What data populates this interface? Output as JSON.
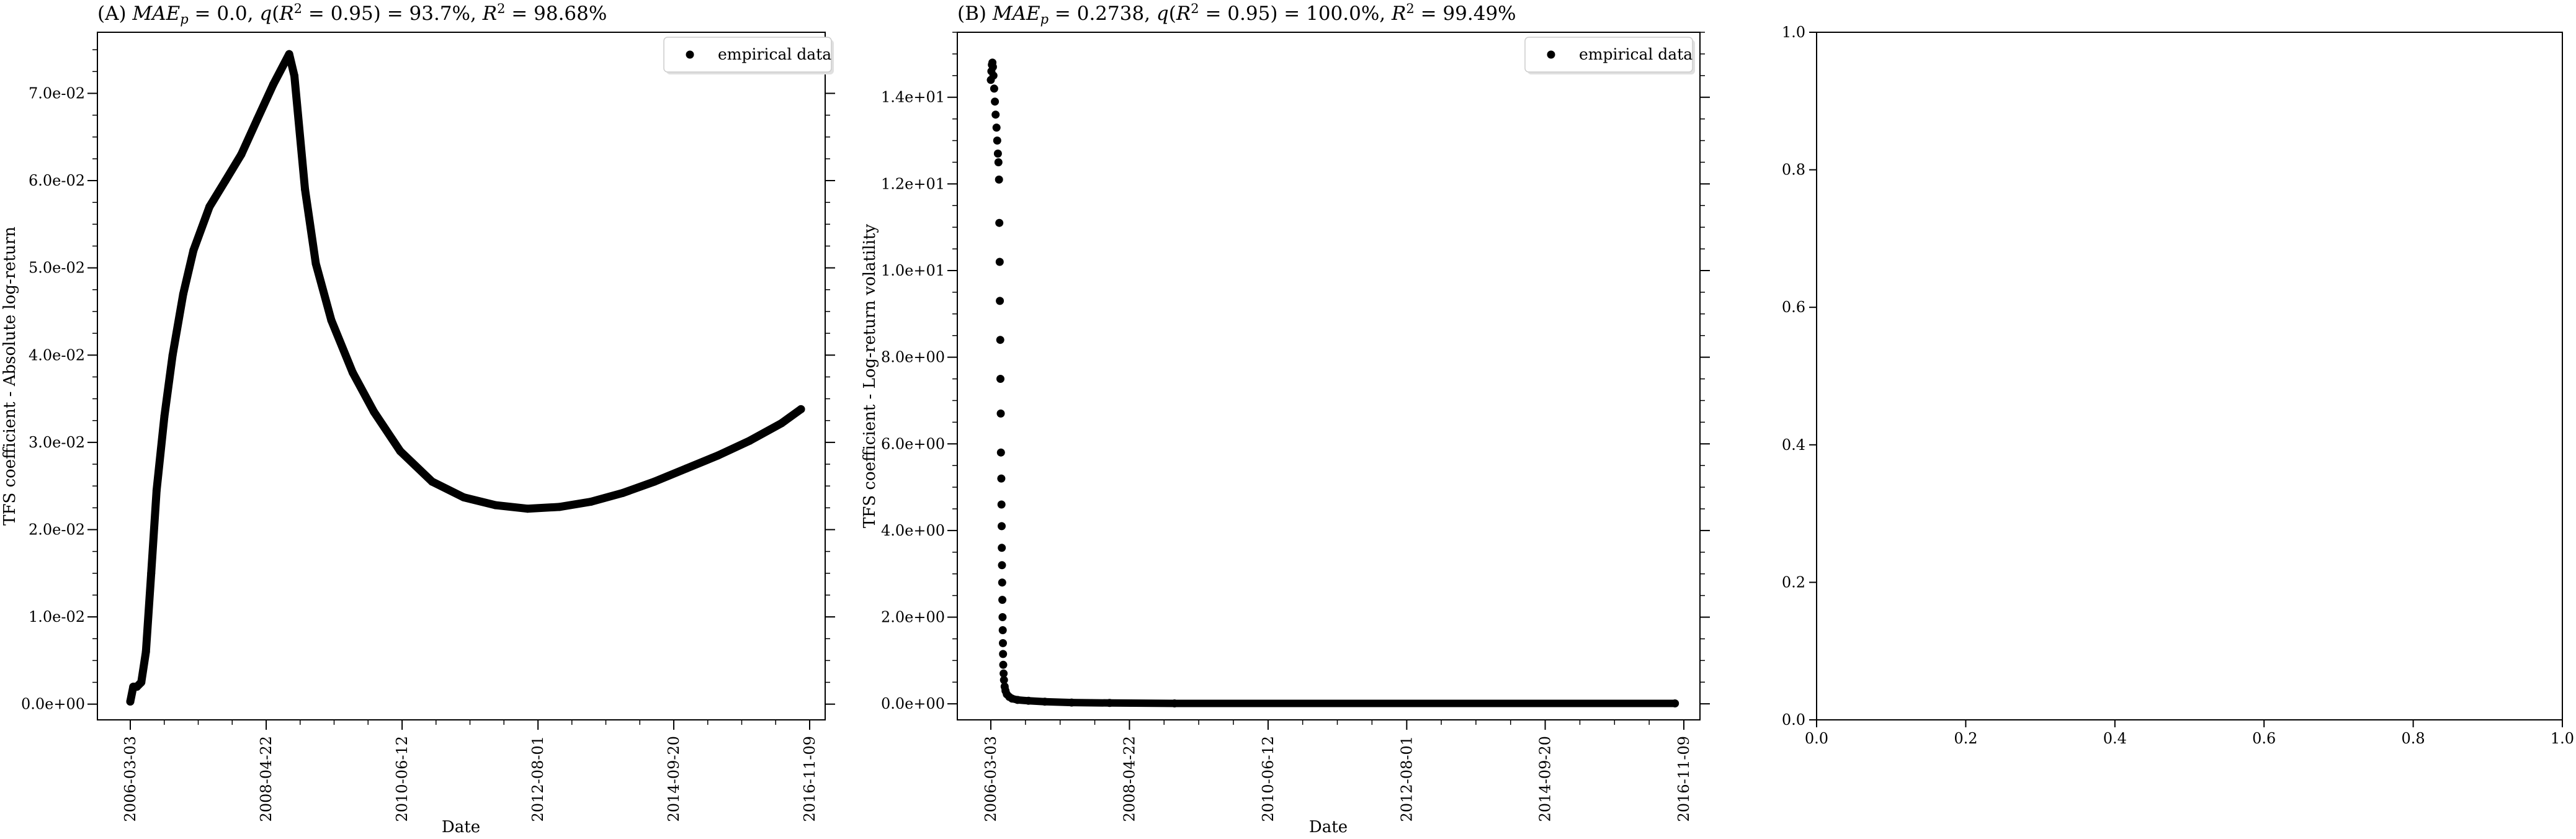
{
  "chart_data": [
    {
      "type": "scatter",
      "title": "(A) MAE_p = 0.0, q(R² = 0.95) = 93.7%, R² = 98.68%",
      "xlabel": "Date",
      "ylabel": "TFS coefficient - Absolute log-return",
      "x_ticks": [
        "2006-03-03",
        "2008-04-22",
        "2010-06-12",
        "2012-08-01",
        "2014-09-20",
        "2016-11-09"
      ],
      "y_ticks": [
        "0.0e+00",
        "1.0e-02",
        "2.0e-02",
        "3.0e-02",
        "4.0e-02",
        "5.0e-02",
        "6.0e-02",
        "7.0e-02"
      ],
      "ylim": [
        -0.0018,
        0.077
      ],
      "legend": "top-right",
      "series": [
        {
          "name": "empirical data",
          "points": [
            [
              "2006-03-03",
              0.0003
            ],
            [
              "2006-03-20",
              0.002
            ],
            [
              "2006-04-10",
              0.002
            ],
            [
              "2006-05-05",
              0.0025
            ],
            [
              "2006-06-01",
              0.006
            ],
            [
              "2006-07-01",
              0.015
            ],
            [
              "2006-08-01",
              0.0245
            ],
            [
              "2006-09-15",
              0.033
            ],
            [
              "2006-11-01",
              0.04
            ],
            [
              "2007-01-01",
              0.047
            ],
            [
              "2007-03-01",
              0.052
            ],
            [
              "2007-06-01",
              0.057
            ],
            [
              "2007-09-01",
              0.06
            ],
            [
              "2007-12-01",
              0.063
            ],
            [
              "2008-03-01",
              0.067
            ],
            [
              "2008-06-01",
              0.071
            ],
            [
              "2008-09-01",
              0.0745
            ],
            [
              "2008-10-01",
              0.072
            ],
            [
              "2008-12-01",
              0.059
            ],
            [
              "2009-02-01",
              0.0505
            ],
            [
              "2009-05-01",
              0.044
            ],
            [
              "2009-09-01",
              0.038
            ],
            [
              "2010-01-01",
              0.0335
            ],
            [
              "2010-06-01",
              0.029
            ],
            [
              "2010-12-01",
              0.0255
            ],
            [
              "2011-06-01",
              0.0237
            ],
            [
              "2011-12-01",
              0.0228
            ],
            [
              "2012-06-01",
              0.0224
            ],
            [
              "2012-12-01",
              0.0226
            ],
            [
              "2013-06-01",
              0.0232
            ],
            [
              "2013-12-01",
              0.0242
            ],
            [
              "2014-06-01",
              0.0255
            ],
            [
              "2014-12-01",
              0.027
            ],
            [
              "2015-06-01",
              0.0285
            ],
            [
              "2015-12-01",
              0.0302
            ],
            [
              "2016-06-01",
              0.0322
            ],
            [
              "2016-09-20",
              0.0338
            ]
          ]
        }
      ]
    },
    {
      "type": "scatter",
      "title": "(B) MAE_p = 0.2738, q(R² = 0.95) = 100.0%, R² = 99.49%",
      "xlabel": "Date",
      "ylabel": "TFS coefficient - Log-return volatility",
      "x_ticks": [
        "2006-03-03",
        "2008-04-22",
        "2010-06-12",
        "2012-08-01",
        "2014-09-20",
        "2016-11-09"
      ],
      "y_ticks": [
        "0.0e+00",
        "2.0e+00",
        "4.0e+00",
        "6.0e+00",
        "8.0e+00",
        "1.0e+01",
        "1.2e+01",
        "1.4e+01"
      ],
      "ylim": [
        -0.37,
        15.5
      ],
      "legend": "top-right",
      "series": [
        {
          "name": "empirical data",
          "points": [
            [
              "2006-03-03",
              14.4
            ],
            [
              "2006-03-06",
              14.6
            ],
            [
              "2006-03-09",
              14.75
            ],
            [
              "2006-03-12",
              14.8
            ],
            [
              "2006-03-15",
              14.7
            ],
            [
              "2006-03-18",
              14.5
            ],
            [
              "2006-03-22",
              14.2
            ],
            [
              "2006-03-26",
              13.9
            ],
            [
              "2006-03-30",
              13.6
            ],
            [
              "2006-04-04",
              13.3
            ],
            [
              "2006-04-08",
              13.0
            ],
            [
              "2006-04-12",
              12.7
            ],
            [
              "2006-04-15",
              12.5
            ],
            [
              "2006-04-18",
              12.1
            ],
            [
              "2006-04-20",
              11.1
            ],
            [
              "2006-04-22",
              10.2
            ],
            [
              "2006-04-23",
              9.3
            ],
            [
              "2006-04-25",
              8.4
            ],
            [
              "2006-04-26",
              7.5
            ],
            [
              "2006-04-28",
              6.7
            ],
            [
              "2006-04-29",
              5.8
            ],
            [
              "2006-05-01",
              5.2
            ],
            [
              "2006-05-02",
              4.6
            ],
            [
              "2006-05-03",
              4.1
            ],
            [
              "2006-05-04",
              3.6
            ],
            [
              "2006-05-05",
              3.2
            ],
            [
              "2006-05-06",
              2.8
            ],
            [
              "2006-05-07",
              2.4
            ],
            [
              "2006-05-08",
              2.0
            ],
            [
              "2006-05-09",
              1.7
            ],
            [
              "2006-05-10",
              1.4
            ],
            [
              "2006-05-11",
              1.15
            ],
            [
              "2006-05-12",
              0.9
            ],
            [
              "2006-05-14",
              0.7
            ],
            [
              "2006-05-16",
              0.55
            ],
            [
              "2006-05-20",
              0.4
            ],
            [
              "2006-05-25",
              0.3
            ],
            [
              "2006-06-01",
              0.22
            ],
            [
              "2006-06-15",
              0.16
            ],
            [
              "2006-07-01",
              0.12
            ],
            [
              "2006-08-01",
              0.09
            ],
            [
              "2006-10-01",
              0.07
            ],
            [
              "2007-01-01",
              0.05
            ],
            [
              "2007-06-01",
              0.03
            ],
            [
              "2008-01-01",
              0.02
            ],
            [
              "2009-01-01",
              0.01
            ],
            [
              "2016-09-20",
              0.01
            ]
          ]
        }
      ]
    },
    {
      "type": "scatter",
      "title": "",
      "xlabel": "",
      "ylabel": "",
      "x_ticks": [
        "0.0",
        "0.2",
        "0.4",
        "0.6",
        "0.8",
        "1.0"
      ],
      "y_ticks": [
        "0.0",
        "0.2",
        "0.4",
        "0.6",
        "0.8",
        "1.0"
      ],
      "xlim": [
        0,
        1
      ],
      "ylim": [
        0,
        1
      ],
      "series": []
    }
  ],
  "colors": {
    "marker": "#000000",
    "axes": "#000000",
    "legend_border": "#cccccc"
  }
}
